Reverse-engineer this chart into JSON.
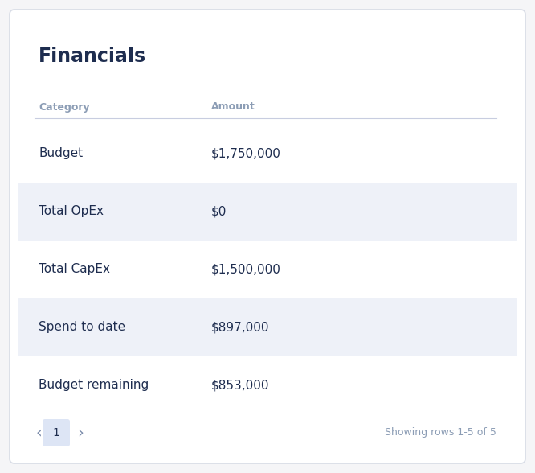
{
  "title": "Financials",
  "col_headers": [
    "Category",
    "Amount"
  ],
  "rows": [
    [
      "Budget",
      "$1,750,000"
    ],
    [
      "Total OpEx",
      "$0"
    ],
    [
      "Total CapEx",
      "$1,500,000"
    ],
    [
      "Spend to date",
      "$897,000"
    ],
    [
      "Budget remaining",
      "$853,000"
    ]
  ],
  "shaded_rows": [
    1,
    3
  ],
  "bg_color": "#f5f5f7",
  "card_bg": "#ffffff",
  "card_border": "#d8dce6",
  "row_shade_color": "#eef1f8",
  "header_text_color": "#8c9db5",
  "title_color": "#1e2d4f",
  "row_text_color": "#1e2d4f",
  "pagination_bg": "#dde5f5",
  "pagination_text": "#7a8baa",
  "footer_text_color": "#8c9db5",
  "header_line_color": "#c8cfd e",
  "title_fontsize": 17,
  "header_fontsize": 9,
  "row_fontsize": 11,
  "footer_fontsize": 9,
  "page_num_fontsize": 10,
  "arrow_fontsize": 10
}
